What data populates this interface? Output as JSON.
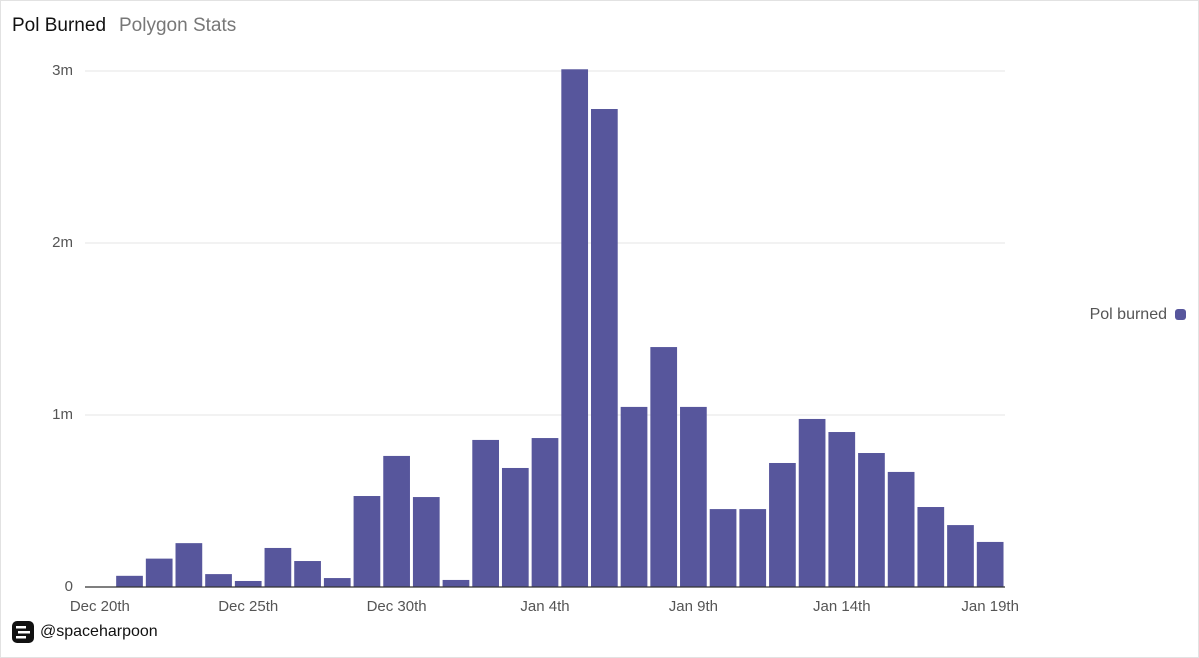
{
  "chart_data": {
    "type": "bar",
    "title": "Pol Burned",
    "subtitle": "Polygon Stats",
    "categories": [
      "Dec 20th",
      null,
      null,
      null,
      null,
      "Dec 25th",
      null,
      null,
      null,
      null,
      "Dec 30th",
      null,
      null,
      null,
      null,
      "Jan 4th",
      null,
      null,
      null,
      null,
      "Jan 9th",
      null,
      null,
      null,
      null,
      "Jan 14th",
      null,
      null,
      null,
      null,
      "Jan 19th"
    ],
    "series": [
      {
        "name": "Pol burned",
        "color": "#57569c",
        "values": [
          0,
          65000,
          165000,
          255000,
          75000,
          35000,
          227000,
          151000,
          52000,
          529000,
          762000,
          523000,
          41000,
          855000,
          692000,
          866000,
          3010000,
          2779000,
          1047000,
          1395000,
          1047000,
          453000,
          453000,
          721000,
          977000,
          901000,
          779000,
          669000,
          465000,
          360000,
          262000
        ]
      }
    ],
    "ylim": [
      0,
      3000000
    ],
    "yticks": [
      0,
      {
        "value": 1000000,
        "label": "1m"
      },
      {
        "value": 2000000,
        "label": "2m"
      },
      {
        "value": 3000000,
        "label": "3m"
      }
    ],
    "grid": true,
    "legend": "right",
    "footer": "@spaceharpoon"
  }
}
